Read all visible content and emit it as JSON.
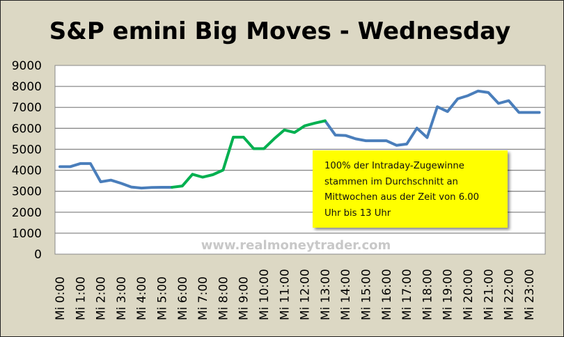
{
  "chart_data": {
    "type": "line",
    "title": "S&P emini Big Moves - Wednesday",
    "xlabel": "",
    "ylabel": "",
    "ylim": [
      0,
      9000
    ],
    "yticks": [
      "0",
      "1000",
      "2000",
      "3000",
      "4000",
      "5000",
      "6000",
      "7000",
      "8000",
      "9000"
    ],
    "xtick_labels": [
      "Mi 0:00",
      "Mi 1:00",
      "Mi 2:00",
      "Mi 3:00",
      "Mi 4:00",
      "Mi 5:00",
      "Mi 6:00",
      "Mi 7:00",
      "Mi 8:00",
      "Mi 9:00",
      "Mi 10:00",
      "Mi 11:00",
      "Mi 12:00",
      "Mi 13:00",
      "Mi 14:00",
      "Mi 15:00",
      "Mi 16:00",
      "Mi 17:00",
      "Mi 18:00",
      "Mi 19:00",
      "Mi 20:00",
      "Mi 21:00",
      "Mi 22:00",
      "Mi 23:00"
    ],
    "x_step": "30 min",
    "grid": true,
    "series": [
      {
        "name": "Wednesday",
        "color": "#4a7ebb",
        "highlight": {
          "from_index": 11,
          "to_index": 26,
          "color": "#00b050"
        },
        "values": [
          4170,
          4170,
          4320,
          4320,
          3450,
          3530,
          3380,
          3200,
          3150,
          3180,
          3190,
          3190,
          3250,
          3810,
          3670,
          3790,
          4010,
          5580,
          5580,
          5030,
          5030,
          5500,
          5920,
          5800,
          6120,
          6250,
          6360,
          5680,
          5660,
          5500,
          5410,
          5410,
          5410,
          5190,
          5250,
          6010,
          5560,
          7030,
          6800,
          7410,
          7560,
          7780,
          7710,
          7190,
          7320,
          6760,
          6760,
          6760
        ]
      }
    ],
    "annotation": [
      "100% der Intraday-Zugewinne",
      "stammen im Durchschnitt an",
      "Mittwochen aus der Zeit von 6.00",
      "Uhr bis 13 Uhr"
    ],
    "watermark": "www.realmoneytrader.com"
  }
}
